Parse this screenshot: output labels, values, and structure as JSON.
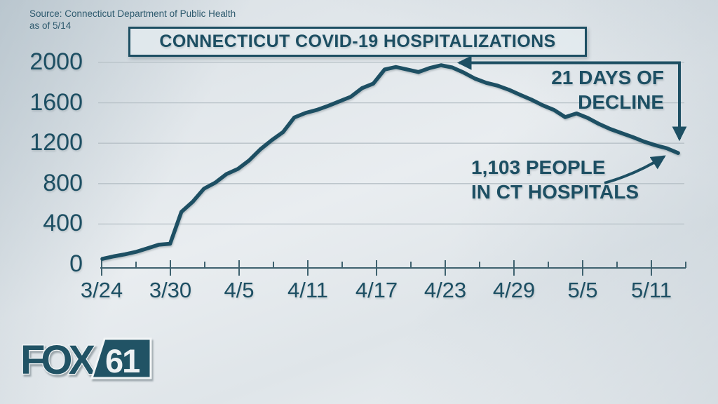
{
  "source": {
    "line1": "Source: Connecticut Department of Public Health",
    "line2": "as of 5/14"
  },
  "title": "CONNECTICUT COVID-19 HOSPITALIZATIONS",
  "annotations": {
    "decline_line1": "21 DAYS OF",
    "decline_line2": "DECLINE",
    "count_line1": "1,103 PEOPLE",
    "count_line2": "IN CT HOSPITALS"
  },
  "logo": {
    "text": "FOX",
    "number": "61"
  },
  "colors": {
    "teal": "#1d4f63",
    "axis": "#3f626f",
    "gridline": "#b7c1c7",
    "background_light": "#e9edf0",
    "background_dark": "#c5d0d8"
  },
  "chart_data": {
    "type": "line",
    "title": "CONNECTICUT COVID-19 HOSPITALIZATIONS",
    "xlabel": "",
    "ylabel": "",
    "ylim": [
      0,
      2000
    ],
    "yticks": [
      0,
      400,
      800,
      1200,
      1600,
      2000
    ],
    "xticks": [
      "3/24",
      "3/30",
      "4/5",
      "4/11",
      "4/17",
      "4/23",
      "4/29",
      "5/5",
      "5/11"
    ],
    "grid": "horizontal",
    "legend": "none",
    "x": [
      "3/24",
      "3/25",
      "3/26",
      "3/27",
      "3/28",
      "3/29",
      "3/30",
      "3/31",
      "4/1",
      "4/2",
      "4/3",
      "4/4",
      "4/5",
      "4/6",
      "4/7",
      "4/8",
      "4/9",
      "4/10",
      "4/11",
      "4/12",
      "4/13",
      "4/14",
      "4/15",
      "4/16",
      "4/17",
      "4/18",
      "4/19",
      "4/20",
      "4/21",
      "4/22",
      "4/23",
      "4/24",
      "4/25",
      "4/26",
      "4/27",
      "4/28",
      "4/29",
      "4/30",
      "5/1",
      "5/2",
      "5/3",
      "5/4",
      "5/5",
      "5/6",
      "5/7",
      "5/8",
      "5/9",
      "5/10",
      "5/11",
      "5/12",
      "5/13",
      "5/14"
    ],
    "values": [
      55,
      80,
      100,
      125,
      160,
      195,
      205,
      520,
      620,
      750,
      810,
      895,
      945,
      1030,
      1140,
      1230,
      1310,
      1455,
      1500,
      1530,
      1570,
      1615,
      1660,
      1745,
      1790,
      1930,
      1955,
      1930,
      1905,
      1945,
      1972,
      1950,
      1900,
      1840,
      1798,
      1770,
      1730,
      1680,
      1632,
      1576,
      1530,
      1458,
      1495,
      1450,
      1390,
      1340,
      1300,
      1260,
      1215,
      1180,
      1150,
      1103
    ],
    "annotations": [
      {
        "label": "21 DAYS OF DECLINE",
        "from_date": "4/23",
        "to_date": "5/14"
      },
      {
        "label": "1,103 PEOPLE IN CT HOSPITALS",
        "date": "5/14",
        "value": 1103
      }
    ]
  }
}
